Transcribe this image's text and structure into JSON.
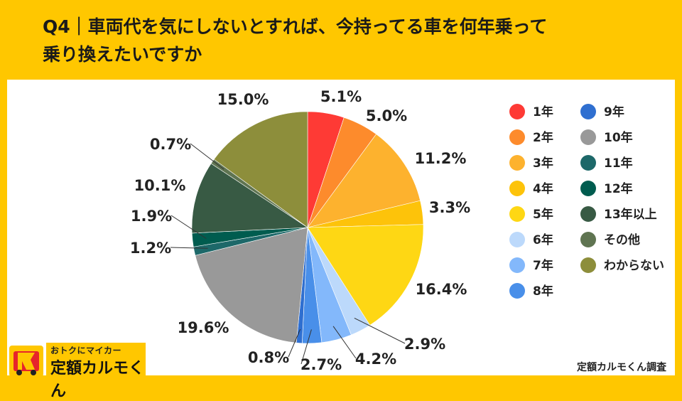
{
  "title": "Q4｜車両代を気にしないとすれば、今持ってる車を何年乗って\n乗り換えたいですか",
  "credit": "定額カルモくん調査",
  "logo": {
    "top_text": "おトクにマイカー",
    "bottom_text": "定額カルモくん"
  },
  "chart_data": {
    "type": "pie",
    "start": "top, clockwise",
    "slices": [
      {
        "label": "1年",
        "value": 5.1,
        "color": "#fe3a35"
      },
      {
        "label": "2年",
        "value": 5.0,
        "color": "#fd8b2c"
      },
      {
        "label": "3年",
        "value": 11.2,
        "color": "#fdb22e"
      },
      {
        "label": "4年",
        "value": 3.3,
        "color": "#fdc30a"
      },
      {
        "label": "5年",
        "value": 16.4,
        "color": "#fed714"
      },
      {
        "label": "6年",
        "value": 2.9,
        "color": "#bcd9fb"
      },
      {
        "label": "7年",
        "value": 4.2,
        "color": "#83b8fb"
      },
      {
        "label": "8年",
        "value": 2.7,
        "color": "#498fe9"
      },
      {
        "label": "9年",
        "value": 0.8,
        "color": "#2f6fd0"
      },
      {
        "label": "10年",
        "value": 19.6,
        "color": "#999999"
      },
      {
        "label": "11年",
        "value": 1.2,
        "color": "#1d6869"
      },
      {
        "label": "12年",
        "value": 1.9,
        "color": "#005c4f"
      },
      {
        "label": "13年以上",
        "value": 10.1,
        "color": "#385a44"
      },
      {
        "label": "その他",
        "value": 0.7,
        "color": "#5f7451"
      },
      {
        "label": "わからない",
        "value": 15.0,
        "color": "#8d8e3b"
      }
    ],
    "value_suffix": "%",
    "legend": "right, two columns"
  }
}
